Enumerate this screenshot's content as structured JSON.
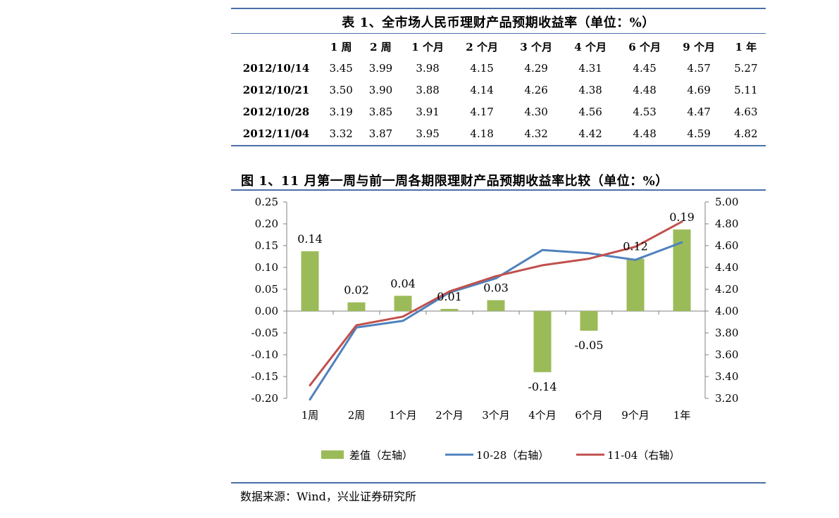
{
  "table": {
    "title": "表 1、全市场人民币理财产品预期收益率（单位：%）",
    "headers": [
      "",
      "1 周",
      "2 周",
      "1 个月",
      "2 个月",
      "3 个月",
      "4 个月",
      "6 个月",
      "9 个月",
      "1 年"
    ],
    "rows": [
      {
        "date": "2012/10/14",
        "values": [
          "3.45",
          "3.99",
          "3.98",
          "4.15",
          "4.29",
          "4.31",
          "4.45",
          "4.57",
          "5.27"
        ]
      },
      {
        "date": "2012/10/21",
        "values": [
          "3.50",
          "3.90",
          "3.88",
          "4.14",
          "4.26",
          "4.38",
          "4.48",
          "4.69",
          "5.11"
        ]
      },
      {
        "date": "2012/10/28",
        "values": [
          "3.19",
          "3.85",
          "3.91",
          "4.17",
          "4.30",
          "4.56",
          "4.53",
          "4.47",
          "4.63"
        ]
      },
      {
        "date": "2012/11/04",
        "values": [
          "3.32",
          "3.87",
          "3.95",
          "4.18",
          "4.32",
          "4.42",
          "4.48",
          "4.59",
          "4.82"
        ]
      }
    ]
  },
  "figure_title": "图 1、11 月第一周与前一周各期限理财产品预期收益率比较（单位：%）",
  "source": "数据来源：Wind，兴业证券研究所",
  "chart_data": {
    "type": "bar",
    "categories": [
      "1周",
      "2周",
      "1个月",
      "2个月",
      "3个月",
      "4个月",
      "6个月",
      "9个月",
      "1年"
    ],
    "series": [
      {
        "name": "差值（左轴）",
        "kind": "bar",
        "axis": "left",
        "color": "#9bbb59",
        "values": [
          0.137,
          0.02,
          0.035,
          0.005,
          0.025,
          -0.14,
          -0.045,
          0.12,
          0.187
        ],
        "labels": [
          "0.14",
          "0.02",
          "0.04",
          "0.01",
          "0.03",
          "-0.14",
          "-0.05",
          "0.12",
          "0.19"
        ]
      },
      {
        "name": "10-28（右轴）",
        "kind": "line",
        "axis": "right",
        "color": "#4f81bd",
        "values": [
          3.19,
          3.85,
          3.91,
          4.17,
          4.3,
          4.56,
          4.53,
          4.47,
          4.63
        ]
      },
      {
        "name": "11-04（右轴）",
        "kind": "line",
        "axis": "right",
        "color": "#c0504d",
        "values": [
          3.32,
          3.87,
          3.95,
          4.18,
          4.32,
          4.42,
          4.48,
          4.59,
          4.82
        ]
      }
    ],
    "y_left": {
      "min": -0.2,
      "max": 0.25,
      "ticks": [
        "-0.20",
        "-0.15",
        "-0.10",
        "-0.05",
        "0.00",
        "0.05",
        "0.10",
        "0.15",
        "0.20",
        "0.25"
      ]
    },
    "y_right": {
      "min": 3.2,
      "max": 5.0,
      "ticks": [
        "3.20",
        "3.40",
        "3.60",
        "3.80",
        "4.00",
        "4.20",
        "4.40",
        "4.60",
        "4.80",
        "5.00"
      ]
    },
    "legend_position": "bottom"
  }
}
